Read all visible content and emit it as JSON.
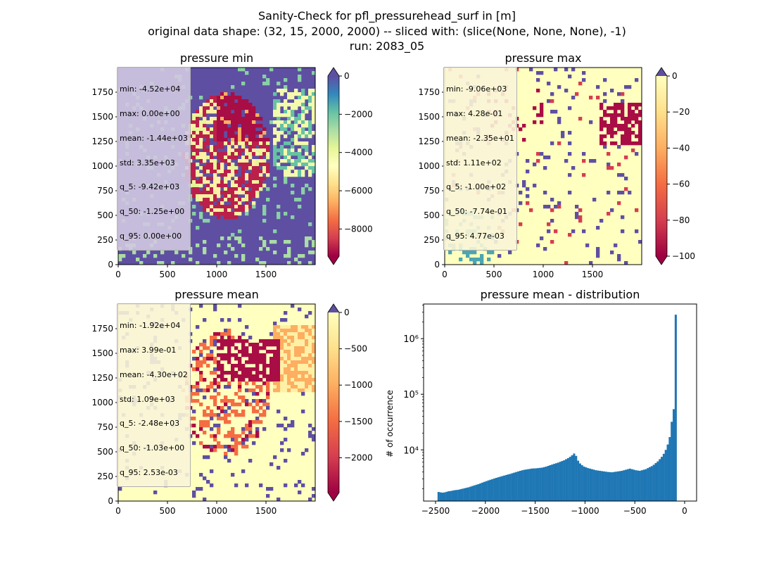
{
  "figure": {
    "title_lines": [
      "Sanity-Check for pfl_pressurehead_surf in [m]",
      "original data shape: (32, 15, 2000, 2000) -- sliced with: (slice(None, None, None), -1)",
      "run: 2083_05"
    ]
  },
  "colors": {
    "histogram_bar": "#1f77b4",
    "spectral_low": "#9e0142",
    "spectral_mid": "#ffffbf",
    "spectral_high": "#5e4fa2",
    "stats_box_bg": "rgba(245,222,179,0.5)"
  },
  "chart_data": [
    {
      "type": "heatmap",
      "title": "pressure min",
      "colormap": "Spectral",
      "xlim": [
        0,
        2000
      ],
      "ylim": [
        0,
        2000
      ],
      "xticks": [
        0,
        500,
        1000,
        1500
      ],
      "yticks": [
        0,
        250,
        500,
        750,
        1000,
        1250,
        1500,
        1750
      ],
      "colorbar": {
        "vmin": -9420,
        "vmax": 0,
        "ticks": [
          "0",
          "−2000",
          "−4000",
          "−6000",
          "−8000"
        ],
        "tick_values": [
          0,
          -2000,
          -4000,
          -6000,
          -8000
        ],
        "extend": "both"
      },
      "stats": [
        "min: -4.52e+04",
        "max: 0.00e+00",
        "mean: -1.44e+03",
        "std: 3.35e+03",
        "q_5: -9.42e+03",
        "q_50: -1.25e+00",
        "q_95: 0.00e+00"
      ]
    },
    {
      "type": "heatmap",
      "title": "pressure max",
      "colormap": "Spectral",
      "xlim": [
        0,
        2000
      ],
      "ylim": [
        0,
        2000
      ],
      "xticks": [
        0,
        500,
        1000,
        1500
      ],
      "yticks": [
        0,
        250,
        500,
        750,
        1000,
        1250,
        1500,
        1750
      ],
      "colorbar": {
        "vmin": -100,
        "vmax": 0,
        "ticks": [
          "0",
          "−20",
          "−40",
          "−60",
          "−80",
          "−100"
        ],
        "tick_values": [
          0,
          -20,
          -40,
          -60,
          -80,
          -100
        ],
        "extend": "both"
      },
      "stats": [
        "min: -9.06e+03",
        "max: 4.28e-01",
        "mean: -2.35e+01",
        "std: 1.11e+02",
        "q_5: -1.00e+02",
        "q_50: -7.74e-01",
        "q_95: 4.77e-03"
      ]
    },
    {
      "type": "heatmap",
      "title": "pressure mean",
      "colormap": "Spectral",
      "xlim": [
        0,
        2000
      ],
      "ylim": [
        0,
        2000
      ],
      "xticks": [
        0,
        500,
        1000,
        1500
      ],
      "yticks": [
        0,
        250,
        500,
        750,
        1000,
        1250,
        1500,
        1750
      ],
      "colorbar": {
        "vmin": -2480,
        "vmax": 0,
        "ticks": [
          "0",
          "−500",
          "−1000",
          "−1500",
          "−2000"
        ],
        "tick_values": [
          0,
          -500,
          -1000,
          -1500,
          -2000
        ],
        "extend": "both"
      },
      "stats": [
        "min: -1.92e+04",
        "max: 3.99e-01",
        "mean: -4.30e+02",
        "std: 1.09e+03",
        "q_5: -2.48e+03",
        "q_50: -1.03e+00",
        "q_95: 2.53e-03"
      ]
    },
    {
      "type": "bar",
      "title": "pressure mean - distribution",
      "ylabel": "# of occurrence",
      "yscale": "log",
      "xlim": [
        -2620,
        120
      ],
      "ylim": [
        1200,
        4200000
      ],
      "xticks": [
        -2500,
        -2000,
        -1500,
        -1000,
        -500,
        0
      ],
      "xtick_labels": [
        "−2500",
        "−2000",
        "−1500",
        "−1000",
        "−500",
        "0"
      ],
      "ytick_values": [
        10000,
        100000,
        1000000
      ],
      "ytick_labels": [
        "10⁴",
        "10⁵",
        "10⁶"
      ],
      "bin_width": 20,
      "bin_left_edges": [
        -2480,
        -2460,
        -2440,
        -2420,
        -2400,
        -2380,
        -2360,
        -2340,
        -2320,
        -2300,
        -2280,
        -2260,
        -2240,
        -2220,
        -2200,
        -2180,
        -2160,
        -2140,
        -2120,
        -2100,
        -2080,
        -2060,
        -2040,
        -2020,
        -2000,
        -1980,
        -1960,
        -1940,
        -1920,
        -1900,
        -1880,
        -1860,
        -1840,
        -1820,
        -1800,
        -1780,
        -1760,
        -1740,
        -1720,
        -1700,
        -1680,
        -1660,
        -1640,
        -1620,
        -1600,
        -1580,
        -1560,
        -1540,
        -1520,
        -1500,
        -1480,
        -1460,
        -1440,
        -1420,
        -1400,
        -1380,
        -1360,
        -1340,
        -1320,
        -1300,
        -1280,
        -1260,
        -1240,
        -1220,
        -1200,
        -1180,
        -1160,
        -1140,
        -1120,
        -1100,
        -1080,
        -1060,
        -1040,
        -1020,
        -1000,
        -980,
        -960,
        -940,
        -920,
        -900,
        -880,
        -860,
        -840,
        -820,
        -800,
        -780,
        -760,
        -740,
        -720,
        -700,
        -680,
        -660,
        -640,
        -620,
        -600,
        -580,
        -560,
        -540,
        -520,
        -500,
        -480,
        -460,
        -440,
        -420,
        -400,
        -380,
        -360,
        -340,
        -320,
        -300,
        -280,
        -260,
        -240,
        -220,
        -200,
        -180,
        -160,
        -140,
        -120,
        -100,
        -80,
        -60,
        -40,
        -20
      ],
      "values": [
        1750,
        1720,
        1700,
        1720,
        1760,
        1800,
        1820,
        1850,
        1880,
        1900,
        1920,
        1960,
        2000,
        2040,
        2080,
        2120,
        2180,
        2240,
        2300,
        2360,
        2420,
        2500,
        2580,
        2660,
        2740,
        2820,
        2900,
        2980,
        3060,
        3140,
        3220,
        3300,
        3380,
        3460,
        3540,
        3620,
        3700,
        3800,
        3900,
        4000,
        4100,
        4200,
        4300,
        4380,
        4440,
        4500,
        4560,
        4620,
        4640,
        4660,
        4700,
        4750,
        4800,
        4900,
        5000,
        5150,
        5300,
        5450,
        5600,
        5750,
        5900,
        6100,
        6300,
        6500,
        6800,
        7100,
        7500,
        8000,
        8600,
        7800,
        6400,
        5700,
        5300,
        5000,
        4850,
        4700,
        4600,
        4500,
        4400,
        4300,
        4250,
        4200,
        4150,
        4100,
        4050,
        4000,
        3980,
        3950,
        4000,
        4050,
        4100,
        4150,
        4200,
        4300,
        4400,
        4500,
        4600,
        4500,
        4400,
        4300,
        4250,
        4200,
        4300,
        4400,
        4500,
        4700,
        4900,
        5100,
        5400,
        5800,
        6200,
        6800,
        7500,
        8500,
        10000,
        12500,
        17000,
        32000,
        54000,
        2700000
      ]
    }
  ]
}
